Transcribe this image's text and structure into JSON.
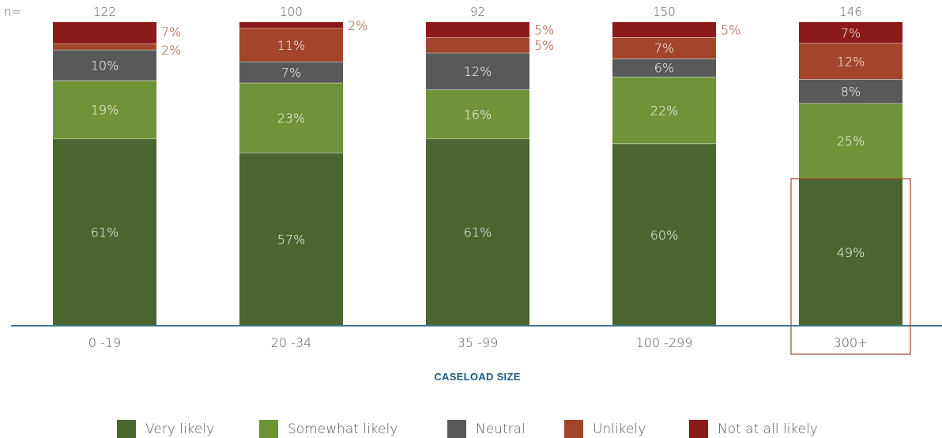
{
  "chart_data": {
    "type": "bar",
    "stacked": true,
    "orientation": "vertical",
    "n_prefix": "n=",
    "n_values": [
      122,
      100,
      92,
      150,
      146
    ],
    "categories": [
      "0 -19",
      "20 -34",
      "35 -99",
      "100 -299",
      "300+"
    ],
    "xlabel": "CASELOAD SIZE",
    "ylabel": "",
    "ylim": [
      0,
      100
    ],
    "highlighted_category": "300+",
    "legend_position": "bottom",
    "series": [
      {
        "name": "Very likely",
        "color": "#4a6530",
        "values": [
          61,
          57,
          61,
          60,
          49
        ],
        "labels": [
          "61%",
          "57%",
          "61%",
          "60%",
          "49%"
        ]
      },
      {
        "name": "Somewhat likely",
        "color": "#6f9339",
        "values": [
          19,
          23,
          16,
          22,
          25
        ],
        "labels": [
          "19%",
          "23%",
          "16%",
          "22%",
          "25%"
        ]
      },
      {
        "name": "Neutral",
        "color": "#58595b",
        "values": [
          10,
          7,
          12,
          6,
          8
        ],
        "labels": [
          "10%",
          "7%",
          "12%",
          "6%",
          "8%"
        ]
      },
      {
        "name": "Unlikely",
        "color": "#a2452a",
        "values": [
          2,
          11,
          5,
          7,
          12
        ],
        "labels": [
          "2%",
          "11%",
          "5%",
          "7%",
          "12%"
        ]
      },
      {
        "name": "Not at all likely",
        "color": "#8b1a1a",
        "values": [
          7,
          2,
          5,
          5,
          7
        ],
        "labels": [
          "7%",
          "2%",
          "5%",
          "5%",
          "7%"
        ]
      }
    ]
  }
}
